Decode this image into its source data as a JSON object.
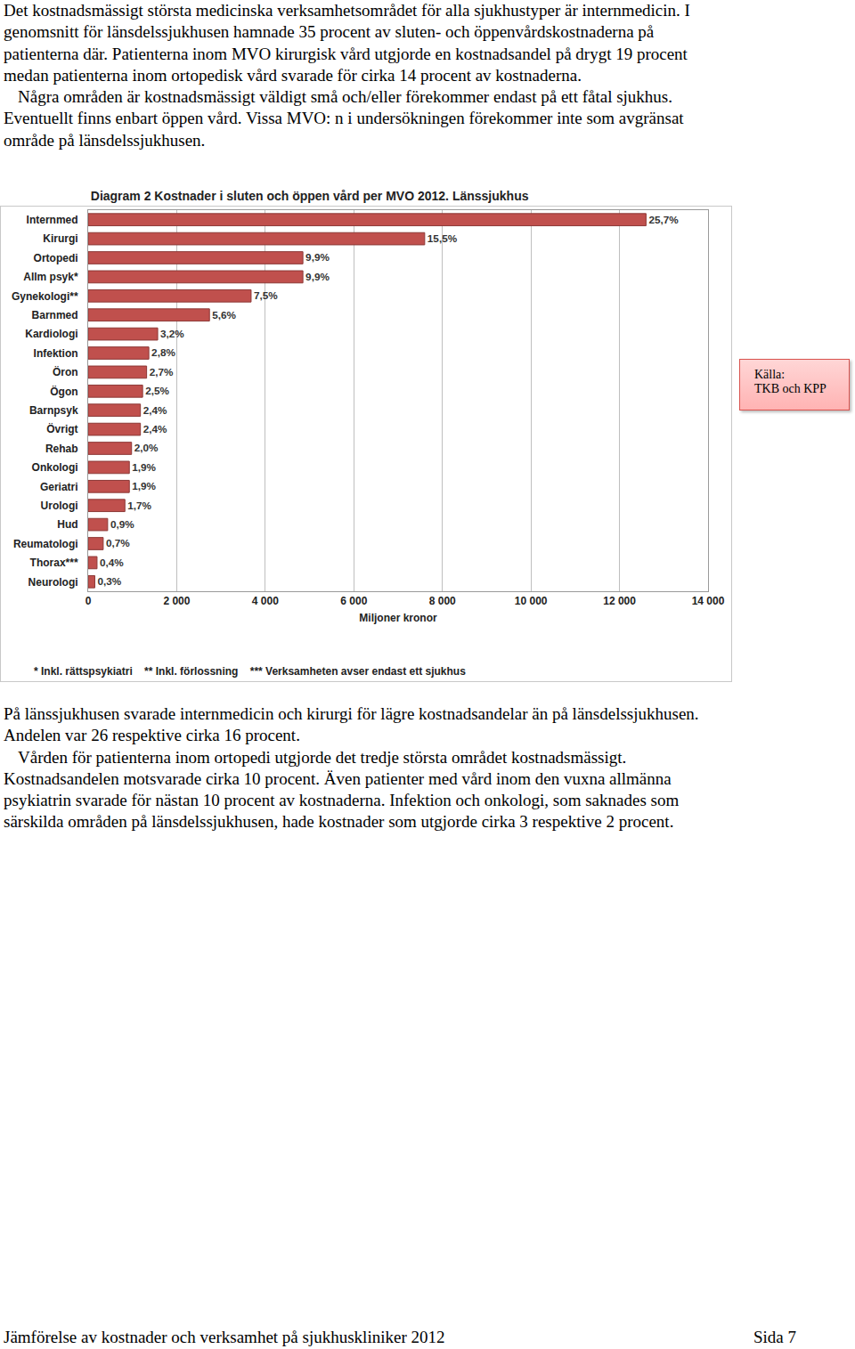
{
  "text_top": [
    "Det kostnadsmässigt största medicinska verksamhetsområdet för alla sjukhustyper är internmedicin. I genomsnitt för länsdelssjukhusen hamnade 35 procent av sluten- och öppenvårdskostnaderna på patienterna där. Patienterna inom MVO kirurgisk vård utgjorde en kostnadsandel på drygt 19 procent medan patienterna inom ortopedisk vård svarade för cirka 14 procent av kostnaderna.",
    "Några områden är kostnadsmässigt väldigt små och/eller förekommer endast på ett fåtal sjukhus. Eventuellt finns enbart öppen vård. Vissa MVO: n i undersökningen förekommer inte som avgränsat område på länsdelssjukhusen."
  ],
  "chart_data": {
    "type": "bar",
    "orientation": "horizontal",
    "title": "Diagram 2 Kostnader i sluten och öppen vård per MVO 2012. Länssjukhus",
    "categories": [
      "Internmed",
      "Kirurgi",
      "Ortopedi",
      "Allm psyk*",
      "Gynekologi**",
      "Barnmed",
      "Kardiologi",
      "Infektion",
      "Öron",
      "Ögon",
      "Barnpsyk",
      "Övrigt",
      "Rehab",
      "Onkologi",
      "Geriatri",
      "Urologi",
      "Hud",
      "Reumatologi",
      "Thorax***",
      "Neurologi"
    ],
    "values": [
      12600,
      7600,
      4850,
      4850,
      3680,
      2740,
      1570,
      1370,
      1320,
      1230,
      1180,
      1180,
      980,
      930,
      930,
      830,
      440,
      340,
      200,
      150
    ],
    "shares": [
      25.7,
      15.5,
      9.9,
      9.9,
      7.5,
      5.6,
      3.2,
      2.8,
      2.7,
      2.5,
      2.4,
      2.4,
      2.0,
      1.9,
      1.9,
      1.7,
      0.9,
      0.7,
      0.4,
      0.3
    ],
    "share_labels": [
      "25,7%",
      "15,5%",
      "9,9%",
      "9,9%",
      "7,5%",
      "5,6%",
      "3,2%",
      "2,8%",
      "2,7%",
      "2,5%",
      "2,4%",
      "2,4%",
      "2,0%",
      "1,9%",
      "1,9%",
      "1,7%",
      "0,9%",
      "0,7%",
      "0,4%",
      "0,3%"
    ],
    "color": "#c0504d",
    "xlabel": "Miljoner kronor",
    "xlim": [
      0,
      14000
    ],
    "xticks": [
      0,
      {
        "value": 2000,
        "label": "2 000"
      },
      {
        "value": 4000,
        "label": "4 000"
      },
      {
        "value": 6000,
        "label": "6 000"
      },
      {
        "value": 8000,
        "label": "8 000"
      },
      {
        "value": 10000,
        "label": "10 000"
      },
      {
        "value": 12000,
        "label": "12 000"
      },
      {
        "value": 14000,
        "label": "14 000"
      }
    ],
    "grid": true,
    "notes": [
      "* Inkl. rättspsykiatri",
      "** Inkl. förlossning",
      "*** Verksamheten avser endast ett sjukhus"
    ],
    "source": [
      "Källa:",
      "TKB och KPP"
    ]
  },
  "text_bottom": [
    "På länssjukhusen svarade internmedicin och kirurgi för lägre kostnadsandelar än på länsdelssjukhusen. Andelen var 26 respektive cirka 16 procent.",
    "Vården för patienterna inom ortopedi utgjorde det tredje största området kostnadsmässigt. Kostnadsandelen motsvarade cirka 10 procent. Även patienter med vård inom den vuxna allmänna psykiatrin svarade för nästan 10 procent av kostnaderna. Infektion och onkologi, som saknades som särskilda områden på länsdelssjukhusen, hade kostnader som utgjorde cirka 3 respektive 2 procent."
  ],
  "footer": {
    "left": "Jämförelse av kostnader och verksamhet på sjukhuskliniker 2012",
    "right": "Sida 7"
  }
}
